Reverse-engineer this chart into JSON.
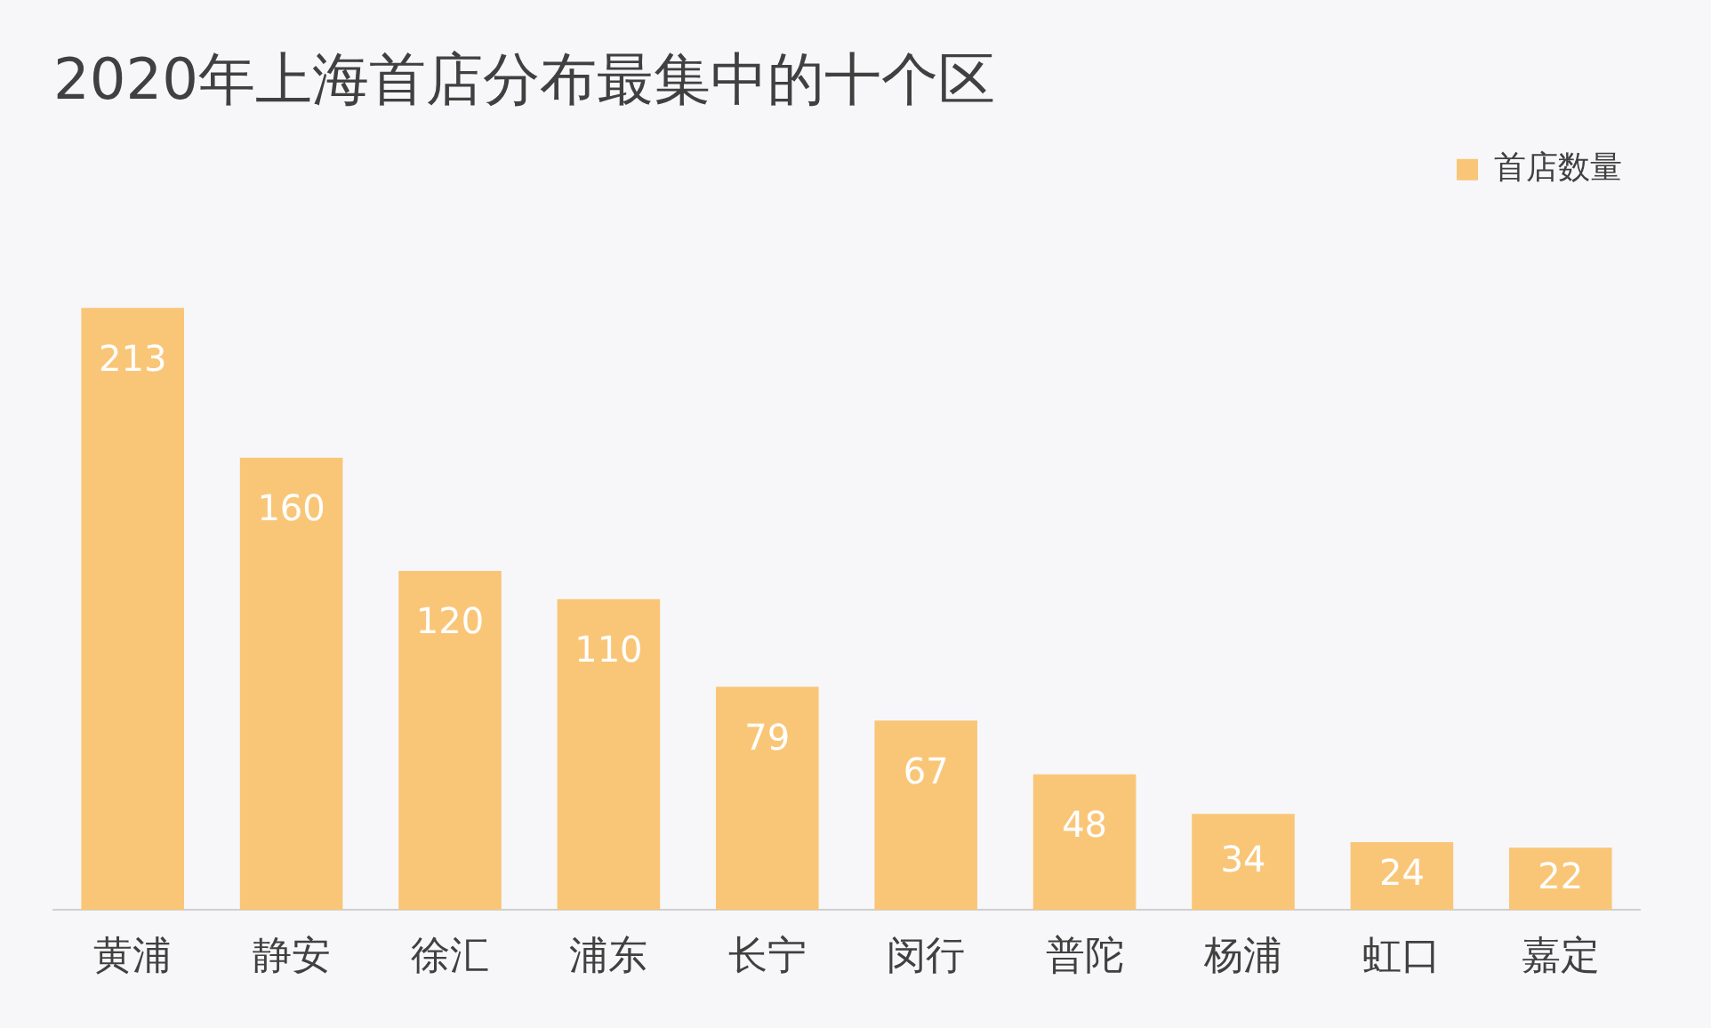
{
  "chart_data": {
    "type": "bar",
    "title": "2020年上海首店分布最集中的十个区",
    "categories": [
      "黄浦",
      "静安",
      "徐汇",
      "浦东",
      "长宁",
      "闵行",
      "普陀",
      "杨浦",
      "虹口",
      "嘉定"
    ],
    "series": [
      {
        "name": "首店数量",
        "color": "#f9c678",
        "values": [
          213,
          160,
          120,
          110,
          79,
          67,
          48,
          34,
          24,
          22
        ]
      }
    ],
    "data_labels": true,
    "legend": "top right",
    "grid": false,
    "tick_labels": "x"
  }
}
